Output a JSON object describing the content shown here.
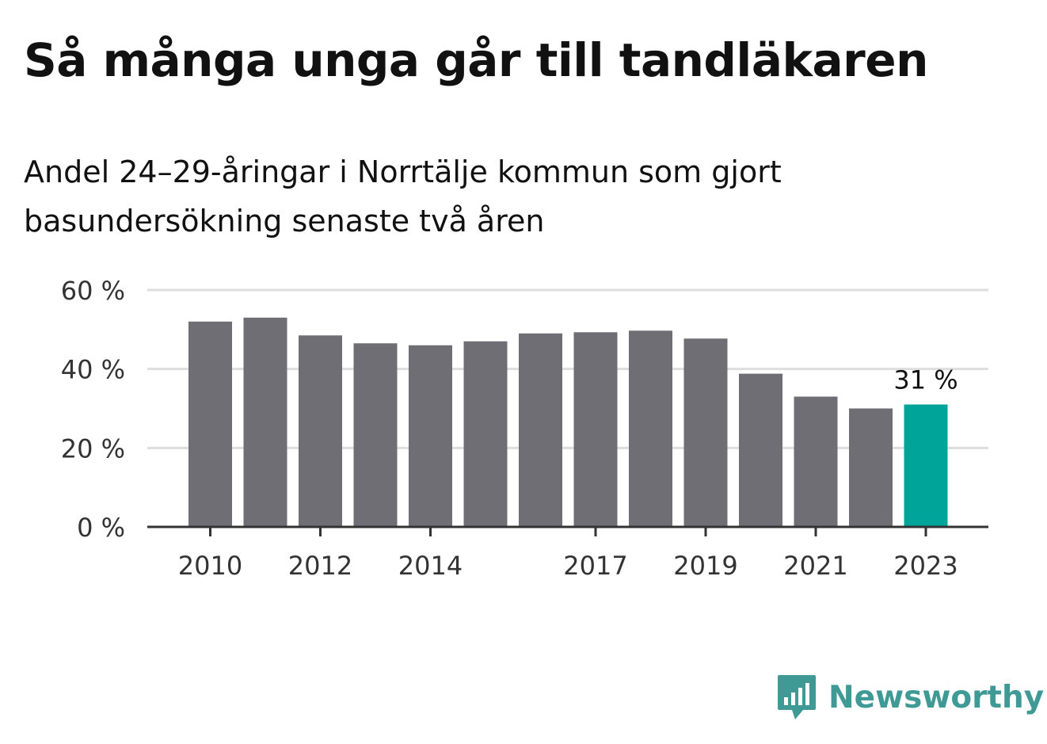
{
  "title": "Så många unga går till tandläkaren",
  "subtitle": "Andel 24–29-åringar i Norrtälje kommun som gjort basundersökning senaste två åren",
  "chart_data": {
    "type": "bar",
    "categories": [
      "2010",
      "2011",
      "2012",
      "2013",
      "2014",
      "2015",
      "2016",
      "2017",
      "2018",
      "2019",
      "2020",
      "2021",
      "2022",
      "2023"
    ],
    "values": [
      52,
      53,
      48.5,
      46.5,
      46,
      47,
      49,
      49.3,
      49.7,
      47.7,
      38.8,
      33,
      30,
      31
    ],
    "x_tick_labels": [
      "2010",
      "2012",
      "2014",
      "2017",
      "2019",
      "2021",
      "2023"
    ],
    "y_ticks": [
      0,
      20,
      40,
      60
    ],
    "y_tick_labels": [
      "0 %",
      "20 %",
      "40 %",
      "60 %"
    ],
    "ylim": [
      0,
      60
    ],
    "grid": true,
    "highlight_index": 13,
    "highlight_label": "31 %",
    "colors": {
      "bar": "#6f6e74",
      "highlight": "#00a499",
      "grid": "#dedede",
      "axis": "#333333"
    }
  },
  "brand": {
    "name": "Newsworthy",
    "icon": "newsworthy-logo-icon",
    "color": "#3f9a95"
  }
}
